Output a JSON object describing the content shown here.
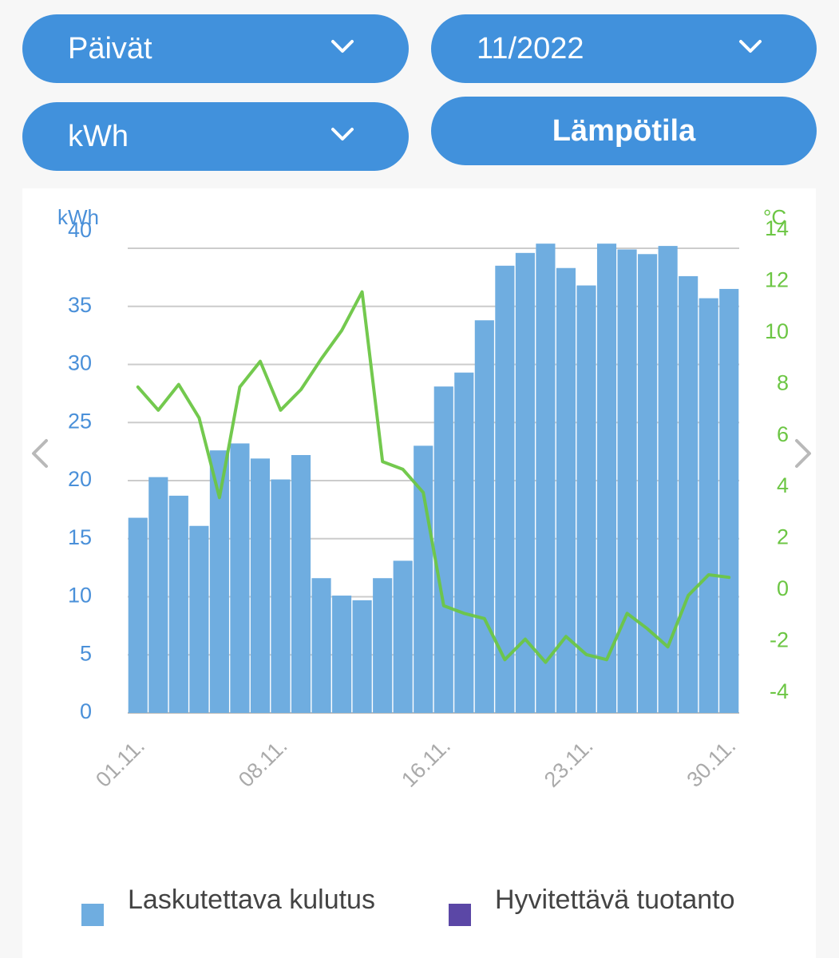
{
  "controls": {
    "period": "Päivät",
    "month": "11/2022",
    "unit": "kWh",
    "temperature_button": "Lämpötila"
  },
  "navigation": {
    "prev_icon": "chevron-left-icon",
    "next_icon": "chevron-right-icon"
  },
  "colors": {
    "bar": "#6fade0",
    "temp_line": "#6cc644",
    "axis_left": "#4a90d9",
    "axis_right": "#6cc644",
    "production": "#5b47a6"
  },
  "legend": {
    "consumption": "Laskutettava kulutus",
    "production": "Hyvitettävä tuotanto"
  },
  "chart_data": {
    "type": "bar",
    "title": "",
    "ylabel": "kWh",
    "y2label": "°C",
    "ylim": [
      0,
      40
    ],
    "y2lim": [
      -4,
      14
    ],
    "yticks": [
      0,
      5,
      10,
      15,
      20,
      25,
      30,
      35,
      40
    ],
    "y2ticks": [
      -4,
      -2,
      0,
      2,
      4,
      6,
      8,
      10,
      12,
      14
    ],
    "x_tick_labels": [
      {
        "day": 1,
        "label": "01.11."
      },
      {
        "day": 8,
        "label": "08.11."
      },
      {
        "day": 16,
        "label": "16.11."
      },
      {
        "day": 23,
        "label": "23.11."
      },
      {
        "day": 30,
        "label": "30.11."
      }
    ],
    "days": [
      1,
      2,
      3,
      4,
      5,
      6,
      7,
      8,
      9,
      10,
      11,
      12,
      13,
      14,
      15,
      16,
      17,
      18,
      19,
      20,
      21,
      22,
      23,
      24,
      25,
      26,
      27,
      28,
      29,
      30
    ],
    "series": [
      {
        "name": "Laskutettava kulutus",
        "type": "bar",
        "axis": "left",
        "values": [
          16.8,
          20.3,
          18.7,
          16.1,
          22.6,
          23.2,
          21.9,
          20.1,
          22.2,
          11.6,
          10.1,
          9.7,
          11.6,
          13.1,
          23.0,
          28.1,
          29.3,
          33.8,
          38.5,
          39.6,
          40.4,
          38.3,
          36.8,
          40.4,
          39.9,
          39.5,
          40.2,
          37.6,
          35.7,
          36.5
        ]
      },
      {
        "name": "Lämpötila",
        "type": "line",
        "axis": "right",
        "values": [
          7.8,
          6.9,
          7.9,
          6.6,
          3.5,
          7.8,
          8.8,
          6.9,
          7.7,
          8.9,
          10.0,
          11.5,
          4.9,
          4.6,
          3.7,
          -0.7,
          -1.0,
          -1.2,
          -2.8,
          -2.0,
          -2.9,
          -1.9,
          -2.6,
          -2.8,
          -1.0,
          -1.6,
          -2.3,
          -0.3,
          0.5,
          0.4
        ]
      },
      {
        "name": "Hyvitettävä tuotanto",
        "type": "bar",
        "axis": "left",
        "values": [
          0,
          0,
          0,
          0,
          0,
          0,
          0,
          0,
          0,
          0,
          0,
          0,
          0,
          0,
          0,
          0,
          0,
          0,
          0,
          0,
          0,
          0,
          0,
          0,
          0,
          0,
          0,
          0,
          0,
          0
        ]
      }
    ]
  }
}
